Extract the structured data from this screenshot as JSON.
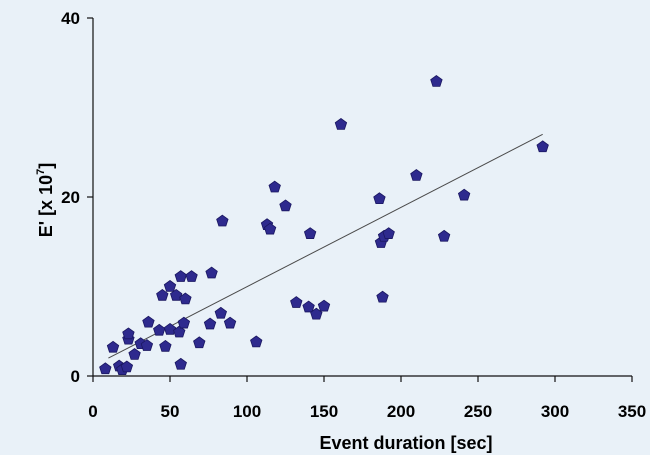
{
  "colors": {
    "background": "#e9f1f8",
    "marker_fill": "#2e2a8e",
    "marker_stroke": "#1a1760",
    "trendline": "#4a4a4a",
    "axis": "#111111"
  },
  "chart_data": {
    "type": "scatter",
    "title": "",
    "xlabel": "Event duration [sec]",
    "ylabel_main": "E' [x 10",
    "ylabel_exp": "7",
    "ylabel_close": "]",
    "xlim": [
      0,
      350
    ],
    "ylim": [
      0,
      40
    ],
    "x_ticks": [
      0,
      50,
      100,
      150,
      200,
      250,
      300,
      350
    ],
    "y_ticks": [
      0,
      20,
      40
    ],
    "x_tick_labels": [
      "0",
      "50",
      "100",
      "150",
      "200",
      "250",
      "300",
      "350"
    ],
    "y_tick_labels": [
      "0",
      "20",
      "40"
    ],
    "grid": false,
    "legend": "none",
    "marker": "pentagon",
    "trendline": {
      "x": [
        10,
        292
      ],
      "y": [
        2.0,
        27.0
      ]
    },
    "points": [
      {
        "x": 8,
        "y": 0.8
      },
      {
        "x": 13,
        "y": 3.2
      },
      {
        "x": 17,
        "y": 1.1
      },
      {
        "x": 19,
        "y": 0.7
      },
      {
        "x": 22,
        "y": 1.0
      },
      {
        "x": 23,
        "y": 4.1
      },
      {
        "x": 23,
        "y": 4.7
      },
      {
        "x": 27,
        "y": 2.4
      },
      {
        "x": 31,
        "y": 3.6
      },
      {
        "x": 35,
        "y": 3.4
      },
      {
        "x": 36,
        "y": 6.0
      },
      {
        "x": 43,
        "y": 5.1
      },
      {
        "x": 45,
        "y": 9.0
      },
      {
        "x": 47,
        "y": 3.3
      },
      {
        "x": 50,
        "y": 10.0
      },
      {
        "x": 50,
        "y": 5.2
      },
      {
        "x": 54,
        "y": 9.0
      },
      {
        "x": 56,
        "y": 4.9
      },
      {
        "x": 57,
        "y": 11.1
      },
      {
        "x": 57,
        "y": 1.3
      },
      {
        "x": 59,
        "y": 5.9
      },
      {
        "x": 60,
        "y": 8.6
      },
      {
        "x": 64,
        "y": 11.1
      },
      {
        "x": 69,
        "y": 3.7
      },
      {
        "x": 76,
        "y": 5.8
      },
      {
        "x": 77,
        "y": 11.5
      },
      {
        "x": 83,
        "y": 7.0
      },
      {
        "x": 84,
        "y": 17.3
      },
      {
        "x": 89,
        "y": 5.9
      },
      {
        "x": 106,
        "y": 3.8
      },
      {
        "x": 113,
        "y": 16.9
      },
      {
        "x": 115,
        "y": 16.4
      },
      {
        "x": 118,
        "y": 21.1
      },
      {
        "x": 125,
        "y": 19.0
      },
      {
        "x": 132,
        "y": 8.2
      },
      {
        "x": 140,
        "y": 7.7
      },
      {
        "x": 141,
        "y": 15.9
      },
      {
        "x": 145,
        "y": 6.9
      },
      {
        "x": 150,
        "y": 7.8
      },
      {
        "x": 161,
        "y": 28.1
      },
      {
        "x": 186,
        "y": 19.8
      },
      {
        "x": 187,
        "y": 14.9
      },
      {
        "x": 188,
        "y": 8.8
      },
      {
        "x": 189,
        "y": 15.6
      },
      {
        "x": 192,
        "y": 15.9
      },
      {
        "x": 210,
        "y": 22.4
      },
      {
        "x": 223,
        "y": 32.9
      },
      {
        "x": 228,
        "y": 15.6
      },
      {
        "x": 241,
        "y": 20.2
      },
      {
        "x": 292,
        "y": 25.6
      }
    ]
  }
}
